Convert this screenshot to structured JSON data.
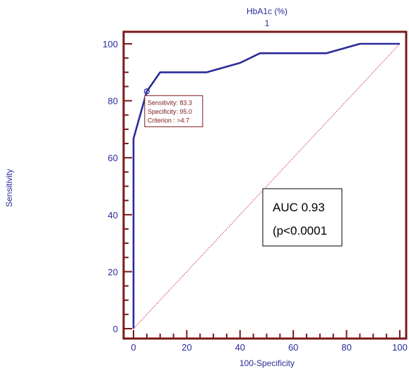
{
  "chart_data": {
    "type": "line",
    "title": "HbA1c (%)",
    "subtitle": "1",
    "xlabel": "100-Specificity",
    "ylabel": "Sensitivity",
    "xlim": [
      0,
      100
    ],
    "ylim": [
      0,
      100
    ],
    "xticks": [
      0,
      20,
      40,
      60,
      80,
      100
    ],
    "yticks": [
      0,
      20,
      40,
      60,
      80,
      100
    ],
    "xtick_labels": [
      "0",
      "20",
      "40",
      "60",
      "80",
      "100"
    ],
    "ytick_labels": [
      "0",
      "20",
      "40",
      "60",
      "80",
      "100"
    ],
    "grid": false,
    "series": [
      {
        "x": [
          0,
          0,
          0,
          5,
          10,
          15,
          27.5,
          40,
          47.5,
          72.5,
          85,
          100
        ],
        "y": [
          0,
          50,
          66.7,
          83.3,
          90,
          90,
          90,
          93.3,
          96.7,
          96.7,
          100,
          100
        ],
        "color": "#2b2b9a"
      },
      {
        "x": [
          0,
          100
        ],
        "y": [
          0,
          100
        ],
        "color": "#d22b2b",
        "style": "dotted"
      }
    ],
    "highlight_point": {
      "x": 5,
      "y": 83.3,
      "lines": [
        "Sensitivity: 83.3",
        "Specificity: 95.0",
        "Criterion : >4.7"
      ]
    },
    "annotation": {
      "lines": [
        "AUC 0.93",
        "(p<0.0001"
      ]
    },
    "colors": {
      "frame": "#7a1a1a",
      "curve": "#2b2b9a",
      "diagonal": "#d22b2b",
      "text": "#2b2b9a"
    }
  }
}
